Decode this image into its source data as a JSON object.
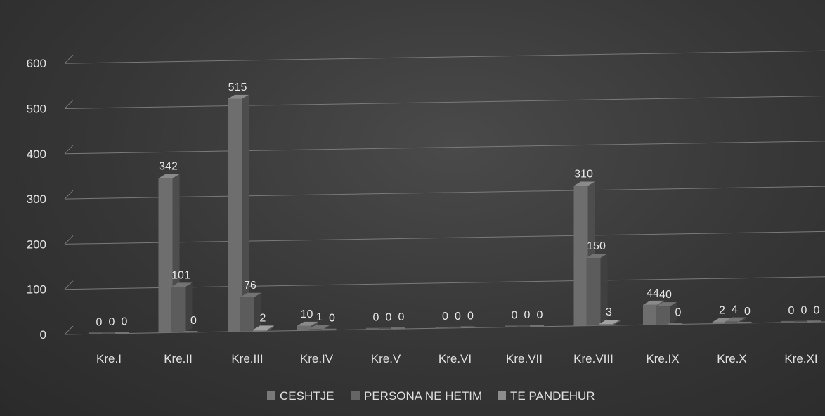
{
  "chart_data": {
    "type": "bar",
    "categories": [
      "Kre.I",
      "Kre.II",
      "Kre.III",
      "Kre.IV",
      "Kre.V",
      "Kre.VI",
      "Kre.VII",
      "Kre.VIII",
      "Kre.IX",
      "Kre.X",
      "Kre.XI"
    ],
    "series": [
      {
        "name": "CESHTJE",
        "values": [
          0,
          342,
          515,
          10,
          0,
          0,
          0,
          310,
          44,
          2,
          0
        ],
        "color": "#6e6e6e"
      },
      {
        "name": "PERSONA NE HETIM",
        "values": [
          0,
          101,
          76,
          1,
          0,
          0,
          0,
          150,
          40,
          4,
          0
        ],
        "color": "#5c5c5c"
      },
      {
        "name": "TE PANDEHUR",
        "values": [
          0,
          0,
          2,
          0,
          0,
          0,
          0,
          3,
          0,
          0,
          0
        ],
        "color": "#808080"
      }
    ],
    "yticks": [
      "0",
      "100",
      "200",
      "300",
      "400",
      "500",
      "600"
    ],
    "ylim": [
      0,
      600
    ],
    "grid": true,
    "legend": "bottom"
  }
}
